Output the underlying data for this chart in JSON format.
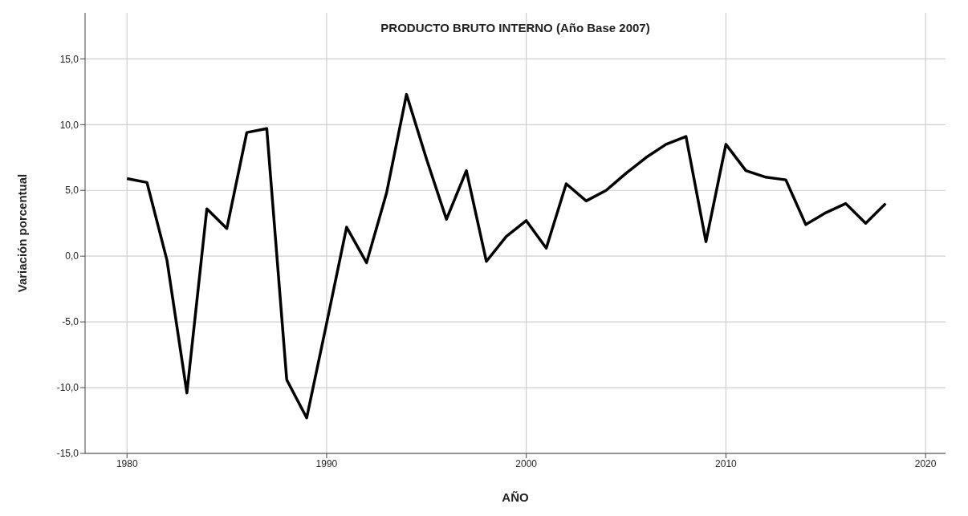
{
  "chart_data": {
    "type": "line",
    "title": "PRODUCTO BRUTO INTERNO (Año Base 2007)",
    "xlabel": "AÑO",
    "ylabel": "Variación porcentual",
    "x": [
      1980,
      1981,
      1982,
      1983,
      1984,
      1985,
      1986,
      1987,
      1988,
      1989,
      1990,
      1991,
      1992,
      1993,
      1994,
      1995,
      1996,
      1997,
      1998,
      1999,
      2000,
      2001,
      2002,
      2003,
      2004,
      2005,
      2006,
      2007,
      2008,
      2009,
      2010,
      2011,
      2012,
      2013,
      2014,
      2015,
      2016,
      2017,
      2018
    ],
    "series": [
      {
        "color": "#000000",
        "values": [
          5.9,
          5.6,
          -0.3,
          -10.4,
          3.6,
          2.1,
          9.4,
          9.7,
          -9.4,
          -12.3,
          -5.1,
          2.2,
          -0.5,
          4.8,
          12.3,
          7.4,
          2.8,
          6.5,
          -0.4,
          1.5,
          2.7,
          0.6,
          5.5,
          4.2,
          5.0,
          6.3,
          7.5,
          8.5,
          9.1,
          1.1,
          8.5,
          6.5,
          6.0,
          5.8,
          2.4,
          3.3,
          4.0,
          2.5,
          4.0
        ]
      }
    ],
    "xlim": [
      1977.9,
      2021
    ],
    "xticks": [
      1980,
      1990,
      2000,
      2010,
      2020
    ],
    "ylim": [
      -15,
      18.5
    ],
    "yticks": [
      {
        "value": -15,
        "label": "-15,0"
      },
      {
        "value": -10,
        "label": "-10,0"
      },
      {
        "value": -5,
        "label": "-5,0"
      },
      {
        "value": 0,
        "label": "0,0"
      },
      {
        "value": 5,
        "label": "5,0"
      },
      {
        "value": 10,
        "label": "10,0"
      },
      {
        "value": 15,
        "label": "15,0"
      }
    ],
    "grid": true,
    "legend": false,
    "marker": "none",
    "line_style": "solid"
  }
}
